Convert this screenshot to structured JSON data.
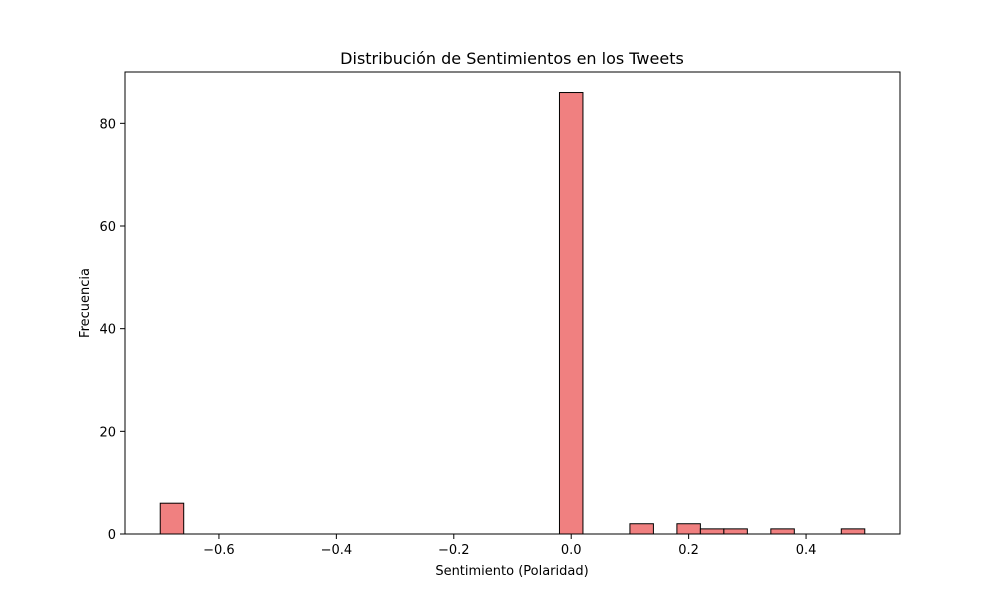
{
  "chart_data": {
    "type": "bar",
    "title": "Distribución de Sentimientos en los Tweets",
    "xlabel": "Sentimiento (Polaridad)",
    "ylabel": "Frecuencia",
    "xlim": [
      -0.76,
      0.56
    ],
    "ylim": [
      0,
      90
    ],
    "grid": false,
    "bar_color": "#f08080",
    "edge_color": "#000000",
    "x_ticks": [
      -0.6,
      -0.4,
      -0.2,
      0.0,
      0.2,
      0.4
    ],
    "x_tick_labels": [
      "−0.6",
      "−0.4",
      "−0.2",
      "0.0",
      "0.2",
      "0.4"
    ],
    "y_ticks": [
      0,
      20,
      40,
      60,
      80
    ],
    "y_tick_labels": [
      "0",
      "20",
      "40",
      "60",
      "80"
    ],
    "bins": [
      {
        "start": -0.7,
        "end": -0.66,
        "count": 6
      },
      {
        "start": -0.02,
        "end": 0.02,
        "count": 86
      },
      {
        "start": 0.1,
        "end": 0.14,
        "count": 2
      },
      {
        "start": 0.18,
        "end": 0.22,
        "count": 2
      },
      {
        "start": 0.22,
        "end": 0.26,
        "count": 1
      },
      {
        "start": 0.26,
        "end": 0.3,
        "count": 1
      },
      {
        "start": 0.34,
        "end": 0.38,
        "count": 1
      },
      {
        "start": 0.46,
        "end": 0.5,
        "count": 1
      }
    ]
  }
}
